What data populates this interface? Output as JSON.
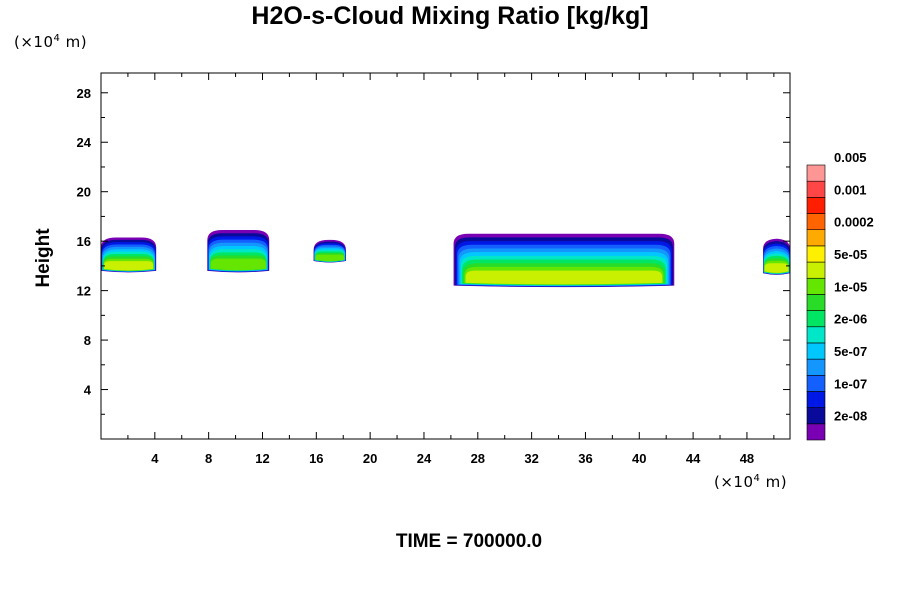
{
  "chart_data": {
    "type": "heatmap",
    "title": "H2O-s-Cloud Mixing Ratio [kg/kg]",
    "ylabel": "Height",
    "x_unit": {
      "prefix": "(×10",
      "exp": "4",
      "suffix": " m)"
    },
    "y_unit": {
      "prefix": "(×10",
      "exp": "4",
      "suffix": " m)"
    },
    "xlim": [
      0,
      51.2
    ],
    "ylim": [
      0,
      29.6
    ],
    "x_ticks": [
      4,
      8,
      12,
      16,
      20,
      24,
      28,
      32,
      36,
      40,
      44,
      48
    ],
    "y_ticks": [
      4,
      8,
      12,
      16,
      20,
      24,
      28
    ],
    "colorbar": {
      "colors": [
        "#7a00b4",
        "#0a0a9a",
        "#0018e6",
        "#1460ff",
        "#1496ff",
        "#00c8ff",
        "#00e6c8",
        "#00e664",
        "#28dc28",
        "#64e600",
        "#c8f000",
        "#fff000",
        "#ffaa00",
        "#ff6400",
        "#ff1e00",
        "#ff4646",
        "#ff9696"
      ],
      "labels": [
        "2e-08",
        "1e-07",
        "5e-07",
        "2e-06",
        "1e-05",
        "5e-05",
        "0.0002",
        "0.001",
        "0.005"
      ]
    },
    "cloud_patches": [
      {
        "x": [
          0,
          4.1
        ],
        "y": [
          13.6,
          16.3
        ],
        "peak_level": 10
      },
      {
        "x": [
          7.9,
          12.5
        ],
        "y": [
          13.6,
          16.9
        ],
        "peak_level": 9
      },
      {
        "x": [
          15.8,
          18.2
        ],
        "y": [
          14.4,
          16.1
        ],
        "peak_level": 9
      },
      {
        "x": [
          26.2,
          42.6
        ],
        "y": [
          12.4,
          16.6
        ],
        "peak_level": 10
      },
      {
        "x": [
          49.2,
          51.2
        ],
        "y": [
          13.4,
          16.2
        ],
        "peak_level": 10
      }
    ],
    "time_label": "TIME = 700000.0"
  }
}
